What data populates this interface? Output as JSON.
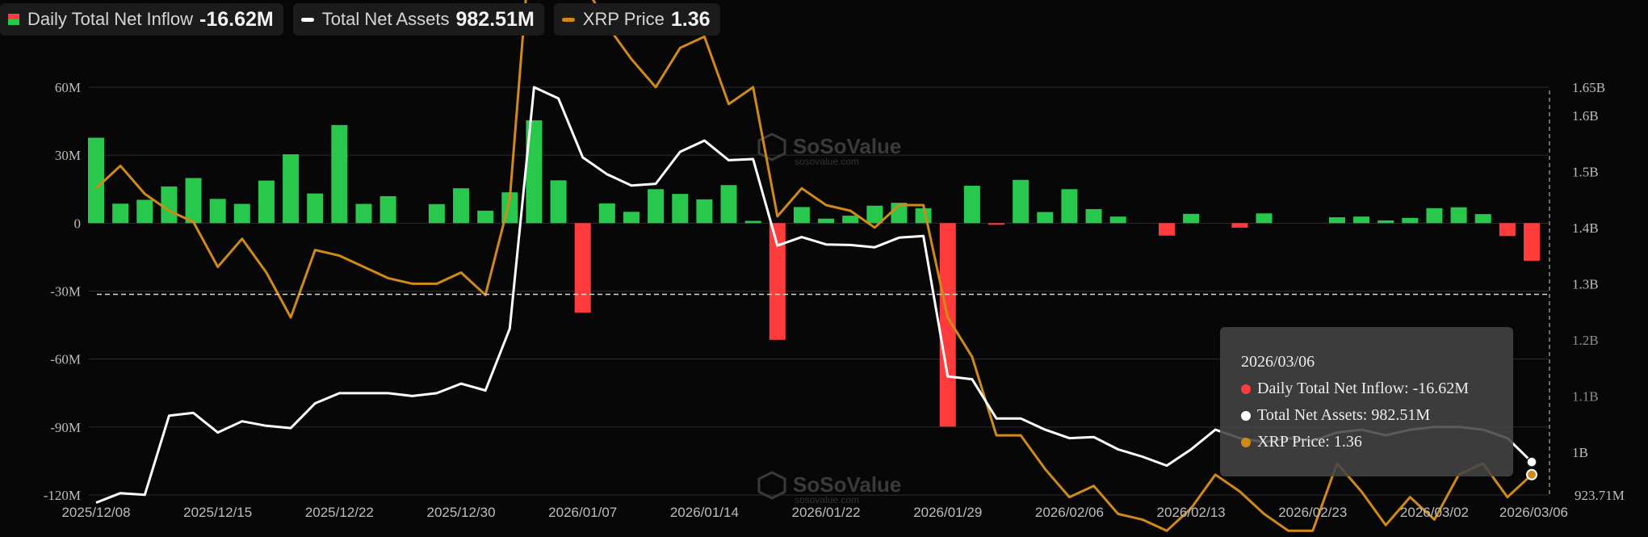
{
  "legend": {
    "inflow": {
      "label": "Daily Total Net Inflow",
      "value": "-16.62M"
    },
    "assets": {
      "label": "Total Net Assets",
      "value": "982.51M"
    },
    "price": {
      "label": "XRP Price",
      "value": "1.36"
    }
  },
  "watermark": "SoSoValue",
  "watermark_sub": "sosovalue.com",
  "colors": {
    "positive": "#27c84c",
    "negative": "#ff3b3b",
    "assets_line": "#ffffff",
    "price_line": "#d08a18",
    "grid": "#2c2c2c",
    "axis_text": "#bdbdbd"
  },
  "tooltip": {
    "date": "2026/03/06",
    "inflow": "Daily Total Net Inflow: -16.62M",
    "assets": "Total Net Assets: 982.51M",
    "price": "XRP Price: 1.36"
  },
  "chart_data": {
    "type": "bar",
    "left_axis_ticks": [
      "60M",
      "30M",
      "0",
      "-30M",
      "-60M",
      "-90M",
      "-120M"
    ],
    "left_ylim": [
      -120,
      60
    ],
    "right_axis_ticks": [
      "1.65B",
      "1.6B",
      "1.5B",
      "1.4B",
      "1.3B",
      "1.2B",
      "1.1B",
      "1B"
    ],
    "right_ylim": [
      923.71,
      1650
    ],
    "right_min_label": "923.71M",
    "crosshair_y_label": "-30M",
    "x_tick_labels": [
      "2025/12/08",
      "2025/12/15",
      "2025/12/22",
      "2025/12/30",
      "2026/01/07",
      "2026/01/14",
      "2026/01/22",
      "2026/01/29",
      "2026/02/06",
      "2026/02/13",
      "2026/02/23",
      "2026/03/02",
      "2026/03/06"
    ],
    "x_tick_index": [
      0,
      5,
      10,
      15,
      20,
      25,
      30,
      35,
      40,
      45,
      50,
      55,
      59
    ],
    "dates_count": 60,
    "series": [
      {
        "name": "Daily Total Net Inflow",
        "unit": "M",
        "values": [
          37.7,
          8.6,
          10.3,
          16.2,
          19.9,
          10.7,
          8.5,
          18.8,
          30.4,
          13.1,
          43.3,
          8.5,
          11.9,
          null,
          8.4,
          15.4,
          5.5,
          13.6,
          45.4,
          18.9,
          -39.5,
          8.7,
          5.0,
          15.0,
          12.9,
          10.5,
          16.8,
          1.0,
          -51.5,
          7.1,
          2.0,
          3.3,
          7.7,
          9.0,
          6.6,
          -89.8,
          16.5,
          -0.5,
          19.1,
          4.9,
          15.0,
          6.2,
          2.9,
          null,
          -5.5,
          4.1,
          null,
          -2.0,
          4.3,
          null,
          null,
          2.6,
          2.9,
          1.2,
          2.3,
          6.6,
          7.0,
          4.0,
          -5.7,
          -16.6
        ]
      },
      {
        "name": "Total Net Assets",
        "unit": "M",
        "values": [
          910,
          927,
          924,
          1065,
          1070,
          1035,
          1055,
          1047,
          1043,
          1087,
          1105,
          1105,
          1105,
          1100,
          1105,
          1122,
          1110,
          1220,
          1650,
          1630,
          1525,
          1495,
          1475,
          1478,
          1535,
          1555,
          1520,
          1522,
          1368,
          1383,
          1370,
          1369,
          1365,
          1382,
          1385,
          1135,
          1130,
          1060,
          1060,
          1040,
          1025,
          1027,
          1005,
          992,
          976,
          1005,
          1040,
          1025,
          1018,
          1025,
          1020,
          1035,
          1040,
          1030,
          1040,
          1045,
          1045,
          1040,
          1025,
          982.51
        ]
      },
      {
        "name": "XRP Price",
        "values": [
          1.87,
          1.91,
          1.86,
          1.83,
          1.81,
          1.73,
          1.78,
          1.72,
          1.64,
          1.76,
          1.75,
          1.73,
          1.71,
          1.7,
          1.7,
          1.72,
          1.68,
          1.85,
          2.39,
          2.31,
          2.24,
          2.16,
          2.1,
          2.05,
          2.12,
          2.14,
          2.02,
          2.05,
          1.82,
          1.87,
          1.84,
          1.83,
          1.8,
          1.84,
          1.84,
          1.64,
          1.57,
          1.43,
          1.43,
          1.37,
          1.32,
          1.34,
          1.29,
          1.28,
          1.26,
          1.3,
          1.36,
          1.33,
          1.29,
          1.26,
          1.26,
          1.38,
          1.33,
          1.27,
          1.32,
          1.28,
          1.36,
          1.38,
          1.32,
          1.36
        ]
      }
    ]
  }
}
